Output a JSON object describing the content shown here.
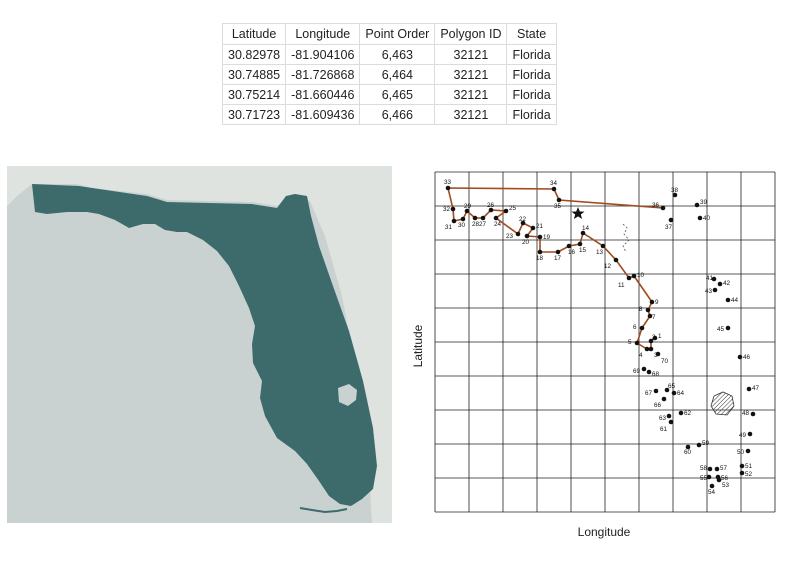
{
  "table": {
    "headers": [
      "Latitude",
      "Longitude",
      "Point Order",
      "Polygon ID",
      "State"
    ],
    "rows": [
      [
        "30.82978",
        "-81.904106",
        "6,463",
        "32121",
        "Florida"
      ],
      [
        "30.74885",
        "-81.726868",
        "6,464",
        "32121",
        "Florida"
      ],
      [
        "30.75214",
        "-81.660446",
        "6,465",
        "32121",
        "Florida"
      ],
      [
        "30.71723",
        "-81.609436",
        "6,466",
        "32121",
        "Florida"
      ]
    ]
  },
  "map": {
    "land_color": "#3d6b6b",
    "water_color": "#c9d2d0",
    "neighbor_color": "#dfe3e0"
  },
  "diagram": {
    "x_axis_label": "Longitude",
    "y_axis_label": "Latitude",
    "path_color": "#a14a1e",
    "points": [
      {
        "id": "1"
      },
      {
        "id": "2"
      },
      {
        "id": "3"
      },
      {
        "id": "4"
      },
      {
        "id": "5"
      },
      {
        "id": "6"
      },
      {
        "id": "7"
      },
      {
        "id": "8"
      },
      {
        "id": "9"
      },
      {
        "id": "10"
      },
      {
        "id": "11"
      },
      {
        "id": "12"
      },
      {
        "id": "13"
      },
      {
        "id": "14"
      },
      {
        "id": "15"
      },
      {
        "id": "16"
      },
      {
        "id": "17"
      },
      {
        "id": "18"
      },
      {
        "id": "19"
      },
      {
        "id": "20"
      },
      {
        "id": "21"
      },
      {
        "id": "22"
      },
      {
        "id": "23"
      },
      {
        "id": "24"
      },
      {
        "id": "25"
      },
      {
        "id": "26"
      },
      {
        "id": "27"
      },
      {
        "id": "28"
      },
      {
        "id": "29"
      },
      {
        "id": "30"
      },
      {
        "id": "31"
      },
      {
        "id": "32"
      },
      {
        "id": "33"
      },
      {
        "id": "34"
      },
      {
        "id": "35"
      },
      {
        "id": "36"
      },
      {
        "id": "37"
      },
      {
        "id": "38"
      },
      {
        "id": "39"
      },
      {
        "id": "40"
      },
      {
        "id": "41"
      },
      {
        "id": "42"
      },
      {
        "id": "43"
      },
      {
        "id": "44"
      },
      {
        "id": "45"
      },
      {
        "id": "46"
      },
      {
        "id": "47"
      },
      {
        "id": "48"
      },
      {
        "id": "49"
      },
      {
        "id": "50"
      },
      {
        "id": "51"
      },
      {
        "id": "52"
      },
      {
        "id": "53"
      },
      {
        "id": "54"
      },
      {
        "id": "55"
      },
      {
        "id": "56"
      },
      {
        "id": "57"
      },
      {
        "id": "58"
      },
      {
        "id": "59"
      },
      {
        "id": "60"
      },
      {
        "id": "61"
      },
      {
        "id": "62"
      },
      {
        "id": "63"
      },
      {
        "id": "64"
      },
      {
        "id": "65"
      },
      {
        "id": "66"
      },
      {
        "id": "67"
      },
      {
        "id": "68"
      },
      {
        "id": "69"
      },
      {
        "id": "70"
      }
    ]
  }
}
